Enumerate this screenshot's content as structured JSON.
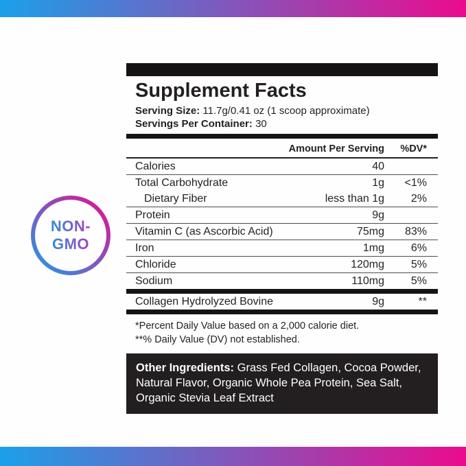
{
  "colors": {
    "frame_gradient_left": "#1BA0E9",
    "frame_gradient_right": "#EC0B8D",
    "badge_text_gradient_left": "#2D8FD9",
    "badge_text_gradient_right": "#AB3FBC",
    "ink": "#231F20",
    "box_background": "#231F20"
  },
  "badge": {
    "line1": "NON-",
    "line2": "GMO"
  },
  "panel": {
    "title": "Supplement Facts",
    "serving_size_label": "Serving Size:",
    "serving_size_value": "11.7g/0.41 oz (1 scoop approximate)",
    "servings_per_container_label": "Servings Per Container:",
    "servings_per_container_value": "30",
    "column_headers": {
      "amount": "Amount Per Serving",
      "dv": "%DV*"
    },
    "rows": [
      {
        "name": "Calories",
        "amount": "40",
        "dv": "",
        "indent": false,
        "rule_after": "thin"
      },
      {
        "name": "Total Carbohydrate",
        "amount": "1g",
        "dv": "<1%",
        "indent": false,
        "rule_after": "none"
      },
      {
        "name": "Dietary Fiber",
        "amount": "less than 1g",
        "dv": "2%",
        "indent": true,
        "rule_after": "thin"
      },
      {
        "name": "Protein",
        "amount": "9g",
        "dv": "",
        "indent": false,
        "rule_after": "thin"
      },
      {
        "name": "Vitamin C (as Ascorbic Acid)",
        "amount": "75mg",
        "dv": "83%",
        "indent": false,
        "rule_after": "thin"
      },
      {
        "name": "Iron",
        "amount": "1mg",
        "dv": "6%",
        "indent": false,
        "rule_after": "thin"
      },
      {
        "name": "Chloride",
        "amount": "120mg",
        "dv": "5%",
        "indent": false,
        "rule_after": "thin"
      },
      {
        "name": "Sodium",
        "amount": "110mg",
        "dv": "5%",
        "indent": false,
        "rule_after": "thick"
      },
      {
        "name": "Collagen Hydrolyzed Bovine",
        "amount": "9g",
        "dv": "**",
        "indent": false,
        "rule_after": "thick"
      }
    ],
    "footnotes": [
      "*Percent Daily Value based on a 2,000 calorie diet.",
      "**% Daily Value (DV) not established."
    ],
    "other_ingredients": {
      "label": "Other Ingredients:",
      "value": "Grass Fed Collagen, Cocoa Powder, Natural Flavor, Organic Whole Pea Protein, Sea Salt, Organic Stevia Leaf Extract"
    }
  }
}
